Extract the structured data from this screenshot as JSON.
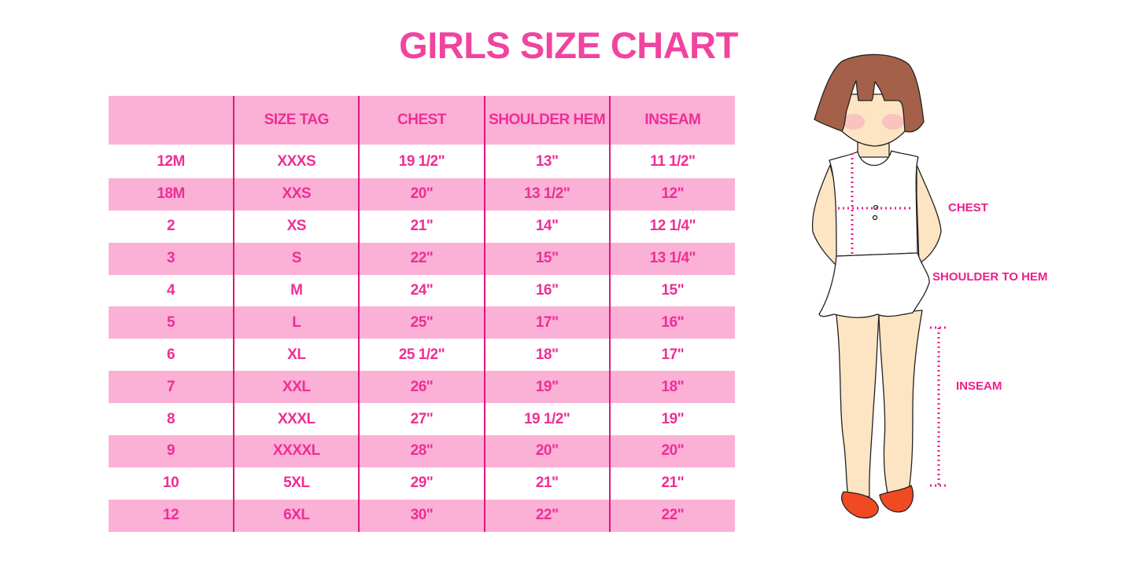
{
  "title": "GIRLS SIZE CHART",
  "table": {
    "headers": [
      "",
      "SIZE TAG",
      "CHEST",
      "SHOULDER HEM",
      "INSEAM"
    ],
    "rows": [
      [
        "12M",
        "XXXS",
        "19 1/2\"",
        "13\"",
        "11 1/2\""
      ],
      [
        "18M",
        "XXS",
        "20\"",
        "13 1/2\"",
        "12\""
      ],
      [
        "2",
        "XS",
        "21\"",
        "14\"",
        "12 1/4\""
      ],
      [
        "3",
        "S",
        "22\"",
        "15\"",
        "13 1/4\""
      ],
      [
        "4",
        "M",
        "24\"",
        "16\"",
        "15\""
      ],
      [
        "5",
        "L",
        "25\"",
        "17\"",
        "16\""
      ],
      [
        "6",
        "XL",
        "25 1/2\"",
        "18\"",
        "17\""
      ],
      [
        "7",
        "XXL",
        "26\"",
        "19\"",
        "18\""
      ],
      [
        "8",
        "XXXL",
        "27\"",
        "19 1/2\"",
        "19\""
      ],
      [
        "9",
        "XXXXL",
        "28\"",
        "20\"",
        "20\""
      ],
      [
        "10",
        "5XL",
        "29\"",
        "21\"",
        "21\""
      ],
      [
        "12",
        "6XL",
        "30\"",
        "22\"",
        "22\""
      ]
    ]
  },
  "figure": {
    "labels": {
      "chest": "CHEST",
      "shoulder_to_hem": "SHOULDER TO HEM",
      "inseam": "INSEAM"
    }
  },
  "colors": {
    "accent": "#ee2e96",
    "row_band": "#fbb0d6",
    "divider": "#e0157f",
    "measure_line": "#ee1e8c"
  }
}
